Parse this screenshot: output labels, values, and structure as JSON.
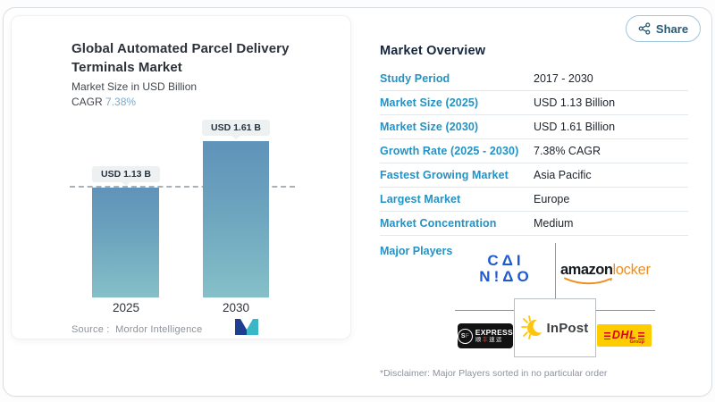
{
  "share": {
    "label": "Share"
  },
  "chart_panel": {
    "title_line1": "Global Automated Parcel Delivery",
    "title_line2": "Terminals Market",
    "subtitle": "Market Size in USD Billion",
    "cagr_label": "CAGR",
    "cagr_value": "7.38%",
    "source_label": "Source :",
    "source_value": "Mordor Intelligence"
  },
  "chart_data": {
    "type": "bar",
    "title": "Global Automated Parcel Delivery Terminals Market",
    "subtitle": "Market Size in USD Billion",
    "cagr": "7.38%",
    "categories": [
      "2025",
      "2030"
    ],
    "values": [
      1.13,
      1.61
    ],
    "value_labels": [
      "USD 1.13 B",
      "USD 1.61 B"
    ],
    "ylabel": "USD Billion",
    "reference_line": 1.13,
    "grid": false,
    "legend": "none",
    "bar_color_top": "#5f93b9",
    "bar_color_bottom": "#85c0c8"
  },
  "overview": {
    "heading": "Market Overview",
    "rows": [
      {
        "label": "Study Period",
        "value": "2017 - 2030"
      },
      {
        "label": "Market Size (2025)",
        "value": "USD 1.13 Billion"
      },
      {
        "label": "Market Size (2030)",
        "value": "USD 1.61 Billion"
      },
      {
        "label": "Growth Rate (2025 - 2030)",
        "value": "7.38% CAGR"
      },
      {
        "label": "Fastest Growing Market",
        "value": "Asia Pacific"
      },
      {
        "label": "Largest Market",
        "value": "Europe"
      },
      {
        "label": "Market Concentration",
        "value": "Medium"
      }
    ],
    "major_players_label": "Major Players",
    "players": [
      "CAINIAO",
      "Amazon Locker",
      "SF Express",
      "InPost",
      "DHL Group"
    ],
    "disclaimer": "*Disclaimer: Major Players sorted in no particular order"
  },
  "logos": {
    "cainiao_line1": "CΔI",
    "cainiao_line2": "N!ΔO",
    "amazon_black": "amazon",
    "amazon_orange": "locker",
    "sf_s": "S",
    "sf_f": "F",
    "sf_express": "EXPRESS",
    "sf_cn_1": "顺",
    "sf_cn_2": "丰",
    "sf_cn_3": "速运",
    "inpost": "InPost",
    "dhl": "DHL",
    "dhl_group": "Group"
  },
  "colors": {
    "accent_blue": "#2193c6",
    "heading_navy": "#14273e",
    "cagr_blue": "#7aa9c8",
    "bar_top": "#5f93b9",
    "bar_bottom": "#85c0c8",
    "pill_bg": "#eef1f1",
    "cainiao_blue": "#1f5ad2",
    "amazon_orange": "#ee8f1f",
    "dhl_yellow": "#ffcc00",
    "dhl_red": "#d40511",
    "inpost_yellow": "#ffc40c",
    "mordor_navy": "#1d3f8e",
    "mordor_teal": "#38b7c7"
  }
}
